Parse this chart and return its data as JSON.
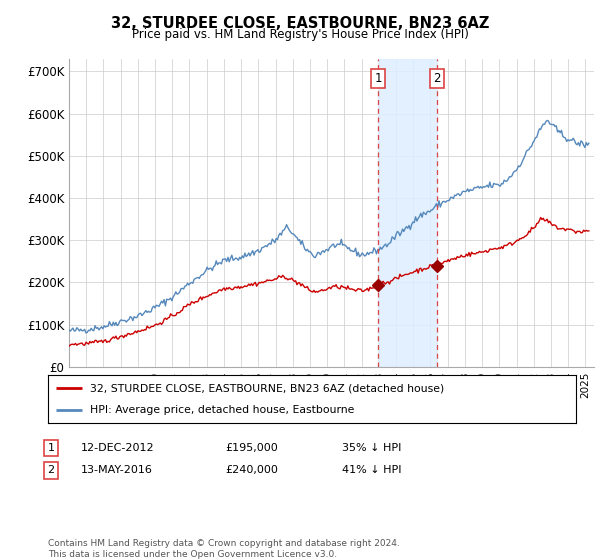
{
  "title": "32, STURDEE CLOSE, EASTBOURNE, BN23 6AZ",
  "subtitle": "Price paid vs. HM Land Registry's House Price Index (HPI)",
  "ylabel_ticks": [
    "£0",
    "£100K",
    "£200K",
    "£300K",
    "£400K",
    "£500K",
    "£600K",
    "£700K"
  ],
  "ytick_vals": [
    0,
    100000,
    200000,
    300000,
    400000,
    500000,
    600000,
    700000
  ],
  "ylim": [
    0,
    730000
  ],
  "xlim_start": 1995.0,
  "xlim_end": 2025.5,
  "transaction1": {
    "date": 2012.95,
    "price": 195000,
    "label": "1"
  },
  "transaction2": {
    "date": 2016.37,
    "price": 240000,
    "label": "2"
  },
  "legend_line1": "32, STURDEE CLOSE, EASTBOURNE, BN23 6AZ (detached house)",
  "legend_line2": "HPI: Average price, detached house, Eastbourne",
  "table_row1": [
    "1",
    "12-DEC-2012",
    "£195,000",
    "35% ↓ HPI"
  ],
  "table_row2": [
    "2",
    "13-MAY-2016",
    "£240,000",
    "41% ↓ HPI"
  ],
  "footnote": "Contains HM Land Registry data © Crown copyright and database right 2024.\nThis data is licensed under the Open Government Licence v3.0.",
  "line_color_red": "#cc0000",
  "line_color_blue": "#5588bb",
  "shade_color": "#ddeeff",
  "vline_color": "#dd4444",
  "background_color": "#ffffff",
  "grid_color": "#cccccc",
  "hpi_anchors": [
    [
      1995.0,
      85000
    ],
    [
      1996.0,
      88000
    ],
    [
      1997.0,
      95000
    ],
    [
      1998.0,
      108000
    ],
    [
      1999.0,
      120000
    ],
    [
      2000.0,
      140000
    ],
    [
      2001.0,
      165000
    ],
    [
      2002.0,
      198000
    ],
    [
      2003.0,
      228000
    ],
    [
      2004.0,
      252000
    ],
    [
      2005.0,
      260000
    ],
    [
      2006.0,
      275000
    ],
    [
      2007.0,
      300000
    ],
    [
      2007.7,
      332000
    ],
    [
      2008.5,
      290000
    ],
    [
      2009.2,
      263000
    ],
    [
      2010.0,
      278000
    ],
    [
      2010.5,
      290000
    ],
    [
      2011.0,
      285000
    ],
    [
      2011.5,
      275000
    ],
    [
      2012.0,
      265000
    ],
    [
      2012.5,
      270000
    ],
    [
      2013.0,
      278000
    ],
    [
      2013.5,
      290000
    ],
    [
      2014.0,
      310000
    ],
    [
      2014.5,
      325000
    ],
    [
      2015.0,
      345000
    ],
    [
      2015.5,
      360000
    ],
    [
      2016.0,
      370000
    ],
    [
      2016.5,
      385000
    ],
    [
      2017.0,
      395000
    ],
    [
      2017.5,
      405000
    ],
    [
      2018.0,
      415000
    ],
    [
      2018.5,
      420000
    ],
    [
      2019.0,
      425000
    ],
    [
      2019.5,
      430000
    ],
    [
      2020.0,
      430000
    ],
    [
      2020.5,
      445000
    ],
    [
      2021.0,
      468000
    ],
    [
      2021.5,
      500000
    ],
    [
      2022.0,
      535000
    ],
    [
      2022.5,
      570000
    ],
    [
      2022.8,
      585000
    ],
    [
      2023.0,
      575000
    ],
    [
      2023.5,
      555000
    ],
    [
      2024.0,
      540000
    ],
    [
      2024.5,
      530000
    ],
    [
      2025.2,
      525000
    ]
  ],
  "prop_anchors": [
    [
      1995.0,
      53000
    ],
    [
      1996.0,
      55000
    ],
    [
      1997.0,
      60000
    ],
    [
      1998.0,
      72000
    ],
    [
      1999.0,
      84000
    ],
    [
      2000.0,
      98000
    ],
    [
      2001.0,
      120000
    ],
    [
      2002.0,
      148000
    ],
    [
      2003.0,
      168000
    ],
    [
      2004.0,
      185000
    ],
    [
      2005.0,
      190000
    ],
    [
      2006.0,
      198000
    ],
    [
      2007.0,
      208000
    ],
    [
      2007.5,
      215000
    ],
    [
      2008.0,
      205000
    ],
    [
      2008.5,
      195000
    ],
    [
      2009.0,
      180000
    ],
    [
      2009.5,
      178000
    ],
    [
      2010.0,
      185000
    ],
    [
      2010.5,
      190000
    ],
    [
      2011.0,
      188000
    ],
    [
      2011.5,
      182000
    ],
    [
      2012.0,
      180000
    ],
    [
      2012.5,
      185000
    ],
    [
      2012.95,
      195000
    ],
    [
      2013.2,
      198000
    ],
    [
      2013.8,
      205000
    ],
    [
      2014.5,
      218000
    ],
    [
      2015.0,
      225000
    ],
    [
      2016.0,
      238000
    ],
    [
      2016.37,
      240000
    ],
    [
      2016.8,
      248000
    ],
    [
      2017.5,
      258000
    ],
    [
      2018.0,
      265000
    ],
    [
      2018.5,
      268000
    ],
    [
      2019.0,
      272000
    ],
    [
      2019.5,
      278000
    ],
    [
      2020.0,
      282000
    ],
    [
      2020.5,
      288000
    ],
    [
      2021.0,
      298000
    ],
    [
      2021.5,
      312000
    ],
    [
      2022.0,
      328000
    ],
    [
      2022.3,
      345000
    ],
    [
      2022.5,
      350000
    ],
    [
      2022.8,
      345000
    ],
    [
      2023.0,
      338000
    ],
    [
      2023.5,
      328000
    ],
    [
      2024.0,
      325000
    ],
    [
      2024.5,
      320000
    ],
    [
      2025.2,
      322000
    ]
  ],
  "noise_seed": 42,
  "hpi_noise": 4000,
  "prop_noise": 2500
}
